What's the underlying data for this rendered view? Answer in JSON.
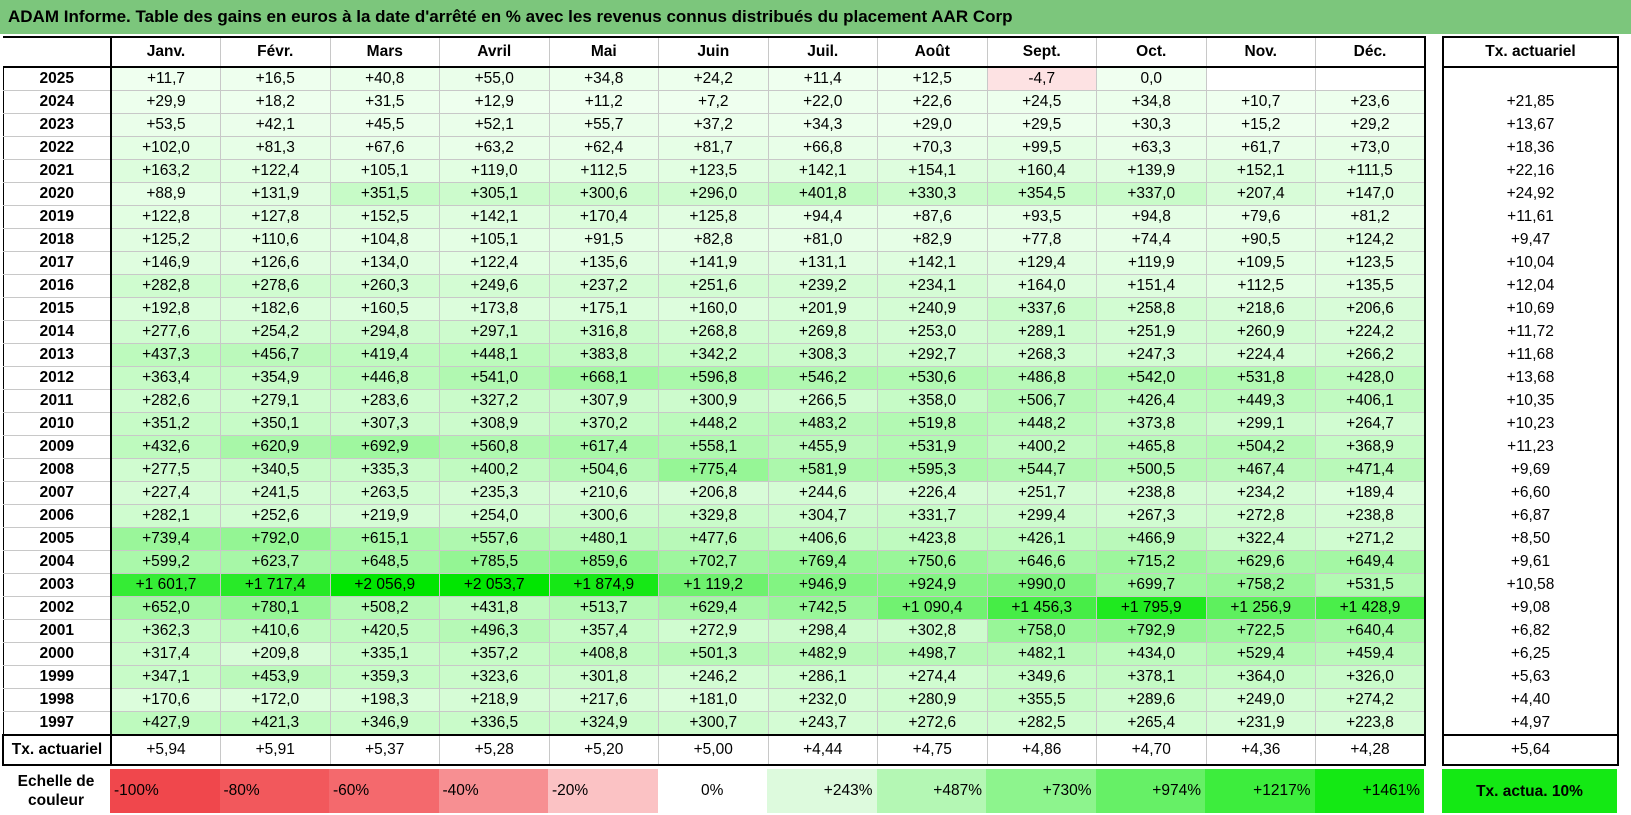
{
  "title": "ADAM Informe. Table des gains en euros à la date d'arrêté en % avec les revenus connus distribués du placement AAR Corp",
  "months": [
    "Janv.",
    "Févr.",
    "Mars",
    "Avril",
    "Mai",
    "Juin",
    "Juil.",
    "Août",
    "Sept.",
    "Oct.",
    "Nov.",
    "Déc."
  ],
  "annual_header": "Tx. actuariel",
  "rows": [
    {
      "year": "2025",
      "values": [
        "+11,7",
        "+16,5",
        "+40,8",
        "+55,0",
        "+34,8",
        "+24,2",
        "+11,4",
        "+12,5",
        "-4,7",
        "0,0",
        "",
        ""
      ],
      "rate": ""
    },
    {
      "year": "2024",
      "values": [
        "+29,9",
        "+18,2",
        "+31,5",
        "+12,9",
        "+11,2",
        "+7,2",
        "+22,0",
        "+22,6",
        "+24,5",
        "+34,8",
        "+10,7",
        "+23,6"
      ],
      "rate": "+21,85"
    },
    {
      "year": "2023",
      "values": [
        "+53,5",
        "+42,1",
        "+45,5",
        "+52,1",
        "+55,7",
        "+37,2",
        "+34,3",
        "+29,0",
        "+29,5",
        "+30,3",
        "+15,2",
        "+29,2"
      ],
      "rate": "+13,67"
    },
    {
      "year": "2022",
      "values": [
        "+102,0",
        "+81,3",
        "+67,6",
        "+63,2",
        "+62,4",
        "+81,7",
        "+66,8",
        "+70,3",
        "+99,5",
        "+63,3",
        "+61,7",
        "+73,0"
      ],
      "rate": "+18,36"
    },
    {
      "year": "2021",
      "values": [
        "+163,2",
        "+122,4",
        "+105,1",
        "+119,0",
        "+112,5",
        "+123,5",
        "+142,1",
        "+154,1",
        "+160,4",
        "+139,9",
        "+152,1",
        "+111,5"
      ],
      "rate": "+22,16"
    },
    {
      "year": "2020",
      "values": [
        "+88,9",
        "+131,9",
        "+351,5",
        "+305,1",
        "+300,6",
        "+296,0",
        "+401,8",
        "+330,3",
        "+354,5",
        "+337,0",
        "+207,4",
        "+147,0"
      ],
      "rate": "+24,92"
    },
    {
      "year": "2019",
      "values": [
        "+122,8",
        "+127,8",
        "+152,5",
        "+142,1",
        "+170,4",
        "+125,8",
        "+94,4",
        "+87,6",
        "+93,5",
        "+94,8",
        "+79,6",
        "+81,2"
      ],
      "rate": "+11,61"
    },
    {
      "year": "2018",
      "values": [
        "+125,2",
        "+110,6",
        "+104,8",
        "+105,1",
        "+91,5",
        "+82,8",
        "+81,0",
        "+82,9",
        "+77,8",
        "+74,4",
        "+90,5",
        "+124,2"
      ],
      "rate": "+9,47"
    },
    {
      "year": "2017",
      "values": [
        "+146,9",
        "+126,6",
        "+134,0",
        "+122,4",
        "+135,6",
        "+141,9",
        "+131,1",
        "+142,1",
        "+129,4",
        "+119,9",
        "+109,5",
        "+123,5"
      ],
      "rate": "+10,04"
    },
    {
      "year": "2016",
      "values": [
        "+282,8",
        "+278,6",
        "+260,3",
        "+249,6",
        "+237,2",
        "+251,6",
        "+239,2",
        "+234,1",
        "+164,0",
        "+151,4",
        "+112,5",
        "+135,5"
      ],
      "rate": "+12,04"
    },
    {
      "year": "2015",
      "values": [
        "+192,8",
        "+182,6",
        "+160,5",
        "+173,8",
        "+175,1",
        "+160,0",
        "+201,9",
        "+240,9",
        "+337,6",
        "+258,8",
        "+218,6",
        "+206,6"
      ],
      "rate": "+10,69"
    },
    {
      "year": "2014",
      "values": [
        "+277,6",
        "+254,2",
        "+294,8",
        "+297,1",
        "+316,8",
        "+268,8",
        "+269,8",
        "+253,0",
        "+289,1",
        "+251,9",
        "+260,9",
        "+224,2"
      ],
      "rate": "+11,72"
    },
    {
      "year": "2013",
      "values": [
        "+437,3",
        "+456,7",
        "+419,4",
        "+448,1",
        "+383,8",
        "+342,2",
        "+308,3",
        "+292,7",
        "+268,3",
        "+247,3",
        "+224,4",
        "+266,2"
      ],
      "rate": "+11,68"
    },
    {
      "year": "2012",
      "values": [
        "+363,4",
        "+354,9",
        "+446,8",
        "+541,0",
        "+668,1",
        "+596,8",
        "+546,2",
        "+530,6",
        "+486,8",
        "+542,0",
        "+531,8",
        "+428,0"
      ],
      "rate": "+13,68"
    },
    {
      "year": "2011",
      "values": [
        "+282,6",
        "+279,1",
        "+283,6",
        "+327,2",
        "+307,9",
        "+300,9",
        "+266,5",
        "+358,0",
        "+506,7",
        "+426,4",
        "+449,3",
        "+406,1"
      ],
      "rate": "+10,35"
    },
    {
      "year": "2010",
      "values": [
        "+351,2",
        "+350,1",
        "+307,3",
        "+308,9",
        "+370,2",
        "+448,2",
        "+483,2",
        "+519,8",
        "+448,2",
        "+373,8",
        "+299,1",
        "+264,7"
      ],
      "rate": "+10,23"
    },
    {
      "year": "2009",
      "values": [
        "+432,6",
        "+620,9",
        "+692,9",
        "+560,8",
        "+617,4",
        "+558,1",
        "+455,9",
        "+531,9",
        "+400,2",
        "+465,8",
        "+504,2",
        "+368,9"
      ],
      "rate": "+11,23"
    },
    {
      "year": "2008",
      "values": [
        "+277,5",
        "+340,5",
        "+335,3",
        "+400,2",
        "+504,6",
        "+775,4",
        "+581,9",
        "+595,3",
        "+544,7",
        "+500,5",
        "+467,4",
        "+471,4"
      ],
      "rate": "+9,69"
    },
    {
      "year": "2007",
      "values": [
        "+227,4",
        "+241,5",
        "+263,5",
        "+235,3",
        "+210,6",
        "+206,8",
        "+244,6",
        "+226,4",
        "+251,7",
        "+238,8",
        "+234,2",
        "+189,4"
      ],
      "rate": "+6,60"
    },
    {
      "year": "2006",
      "values": [
        "+282,1",
        "+252,6",
        "+219,9",
        "+254,0",
        "+300,6",
        "+329,8",
        "+304,7",
        "+331,7",
        "+299,4",
        "+267,3",
        "+272,8",
        "+238,8"
      ],
      "rate": "+6,87"
    },
    {
      "year": "2005",
      "values": [
        "+739,4",
        "+792,0",
        "+615,1",
        "+557,6",
        "+480,1",
        "+477,6",
        "+406,6",
        "+423,8",
        "+426,1",
        "+466,9",
        "+322,4",
        "+271,2"
      ],
      "rate": "+8,50"
    },
    {
      "year": "2004",
      "values": [
        "+599,2",
        "+623,7",
        "+648,5",
        "+785,5",
        "+859,6",
        "+702,7",
        "+769,4",
        "+750,6",
        "+646,6",
        "+715,2",
        "+629,6",
        "+649,4"
      ],
      "rate": "+9,61"
    },
    {
      "year": "2003",
      "values": [
        "+1 601,7",
        "+1 717,4",
        "+2 056,9",
        "+2 053,7",
        "+1 874,9",
        "+1 119,2",
        "+946,9",
        "+924,9",
        "+990,0",
        "+699,7",
        "+758,2",
        "+531,5"
      ],
      "rate": "+10,58"
    },
    {
      "year": "2002",
      "values": [
        "+652,0",
        "+780,1",
        "+508,2",
        "+431,8",
        "+513,7",
        "+629,4",
        "+742,5",
        "+1 090,4",
        "+1 456,3",
        "+1 795,9",
        "+1 256,9",
        "+1 428,9"
      ],
      "rate": "+9,08"
    },
    {
      "year": "2001",
      "values": [
        "+362,3",
        "+410,6",
        "+420,5",
        "+496,3",
        "+357,4",
        "+272,9",
        "+298,4",
        "+302,8",
        "+758,0",
        "+792,9",
        "+722,5",
        "+640,4"
      ],
      "rate": "+6,82"
    },
    {
      "year": "2000",
      "values": [
        "+317,4",
        "+209,8",
        "+335,1",
        "+357,2",
        "+408,8",
        "+501,3",
        "+482,9",
        "+498,7",
        "+482,1",
        "+434,0",
        "+529,4",
        "+459,4"
      ],
      "rate": "+6,25"
    },
    {
      "year": "1999",
      "values": [
        "+347,1",
        "+453,9",
        "+359,3",
        "+323,6",
        "+301,8",
        "+246,2",
        "+286,1",
        "+274,4",
        "+349,6",
        "+378,1",
        "+364,0",
        "+326,0"
      ],
      "rate": "+5,63"
    },
    {
      "year": "1998",
      "values": [
        "+170,6",
        "+172,0",
        "+198,3",
        "+218,9",
        "+217,6",
        "+181,0",
        "+232,0",
        "+280,9",
        "+355,5",
        "+289,6",
        "+249,0",
        "+274,2"
      ],
      "rate": "+4,40"
    },
    {
      "year": "1997",
      "values": [
        "+427,9",
        "+421,3",
        "+346,9",
        "+336,5",
        "+324,9",
        "+300,7",
        "+243,7",
        "+272,6",
        "+282,5",
        "+265,4",
        "+231,9",
        "+223,8"
      ],
      "rate": "+4,97"
    }
  ],
  "footer": {
    "label": "Tx. actuariel",
    "values": [
      "+5,94",
      "+5,91",
      "+5,37",
      "+5,28",
      "+5,20",
      "+5,00",
      "+4,44",
      "+4,75",
      "+4,86",
      "+4,70",
      "+4,36",
      "+4,28"
    ],
    "rate": "+5,64"
  },
  "legend": {
    "label": "Echelle de couleur",
    "steps": [
      {
        "text": "-100%",
        "color": "#f0474c",
        "kind": "neg"
      },
      {
        "text": "-80%",
        "color": "#f2585c",
        "kind": "neg"
      },
      {
        "text": "-60%",
        "color": "#f4696d",
        "kind": "neg"
      },
      {
        "text": "-40%",
        "color": "#f78f92",
        "kind": "neg"
      },
      {
        "text": "-20%",
        "color": "#fbc2c4",
        "kind": "neg"
      },
      {
        "text": "0%",
        "color": "#ffffff",
        "kind": "zero"
      },
      {
        "text": "+243%",
        "color": "#ddfadd",
        "kind": "pos"
      },
      {
        "text": "+487%",
        "color": "#b4f7b4",
        "kind": "pos"
      },
      {
        "text": "+730%",
        "color": "#8df48d",
        "kind": "pos"
      },
      {
        "text": "+974%",
        "color": "#66f066",
        "kind": "pos"
      },
      {
        "text": "+1217%",
        "color": "#3ded3d",
        "kind": "pos"
      },
      {
        "text": "+1461%",
        "color": "#14e914",
        "kind": "pos"
      }
    ],
    "actuarial": {
      "text": "Tx. actua. 10%",
      "color": "#14e914"
    }
  },
  "colors": {
    "title_bar": "#7cc67c",
    "positive_max": "#00e600",
    "negative": "#fde2e3"
  }
}
